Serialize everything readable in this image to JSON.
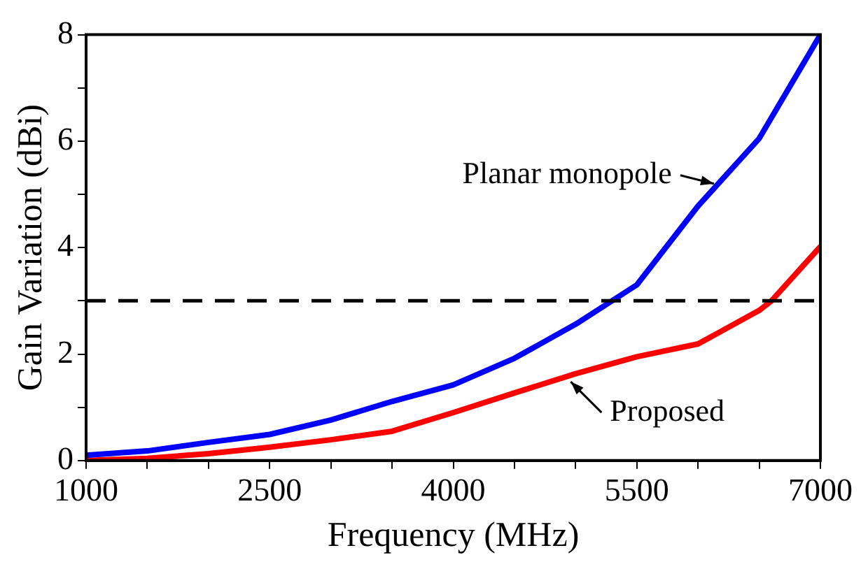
{
  "chart_data": {
    "type": "line",
    "xlabel": "Frequency (MHz)",
    "ylabel": "Gain Variation (dBi)",
    "x": [
      1000,
      1500,
      2000,
      2500,
      3000,
      3500,
      4000,
      4500,
      5000,
      5500,
      6000,
      6500,
      7000
    ],
    "series": [
      {
        "color": "#0000ff",
        "values": [
          0.1,
          0.18,
          0.34,
          0.49,
          0.76,
          1.11,
          1.42,
          1.92,
          2.56,
          3.3,
          4.78,
          6.05,
          8
        ]
      },
      {
        "color": "#ff0000",
        "x": [
          1000,
          1500,
          2000,
          2500,
          3000,
          3500,
          4000,
          4500,
          5000,
          5500,
          6000,
          6500,
          6600,
          7000
        ],
        "values": [
          0,
          0.04,
          0.13,
          0.25,
          0.39,
          0.55,
          0.9,
          1.27,
          1.63,
          1.95,
          2.19,
          2.82,
          3.0,
          4.02
        ]
      }
    ],
    "xlim": [
      1000,
      7000
    ],
    "ylim": [
      0,
      8
    ],
    "xticks": [
      1000,
      {
        "value": 1500,
        "label": null
      },
      {
        "value": 2000,
        "label": null
      },
      2500,
      {
        "value": 3000,
        "label": null
      },
      {
        "value": 3500,
        "label": null
      },
      4000,
      {
        "value": 4500,
        "label": null
      },
      {
        "value": 5000,
        "label": null
      },
      5500,
      {
        "value": 6000,
        "label": null
      },
      {
        "value": 6500,
        "label": null
      },
      7000
    ],
    "yticks": [
      0,
      {
        "value": 1,
        "label": null
      },
      2,
      {
        "value": 3,
        "label": null
      },
      4,
      {
        "value": 5,
        "label": null
      },
      6,
      {
        "value": 7,
        "label": null
      },
      8
    ],
    "ref_lines": [
      {
        "axis": "y",
        "value": 3,
        "color": "#000000",
        "line_style": "dashed"
      }
    ],
    "annotations": [
      {
        "text": "Planar monopole",
        "x": 6130,
        "y": 5.2
      },
      {
        "text": "Proposed",
        "x": 4960,
        "y": 1.48
      }
    ],
    "grid": false,
    "legend": false,
    "marker": "none",
    "line_style": "solid"
  }
}
